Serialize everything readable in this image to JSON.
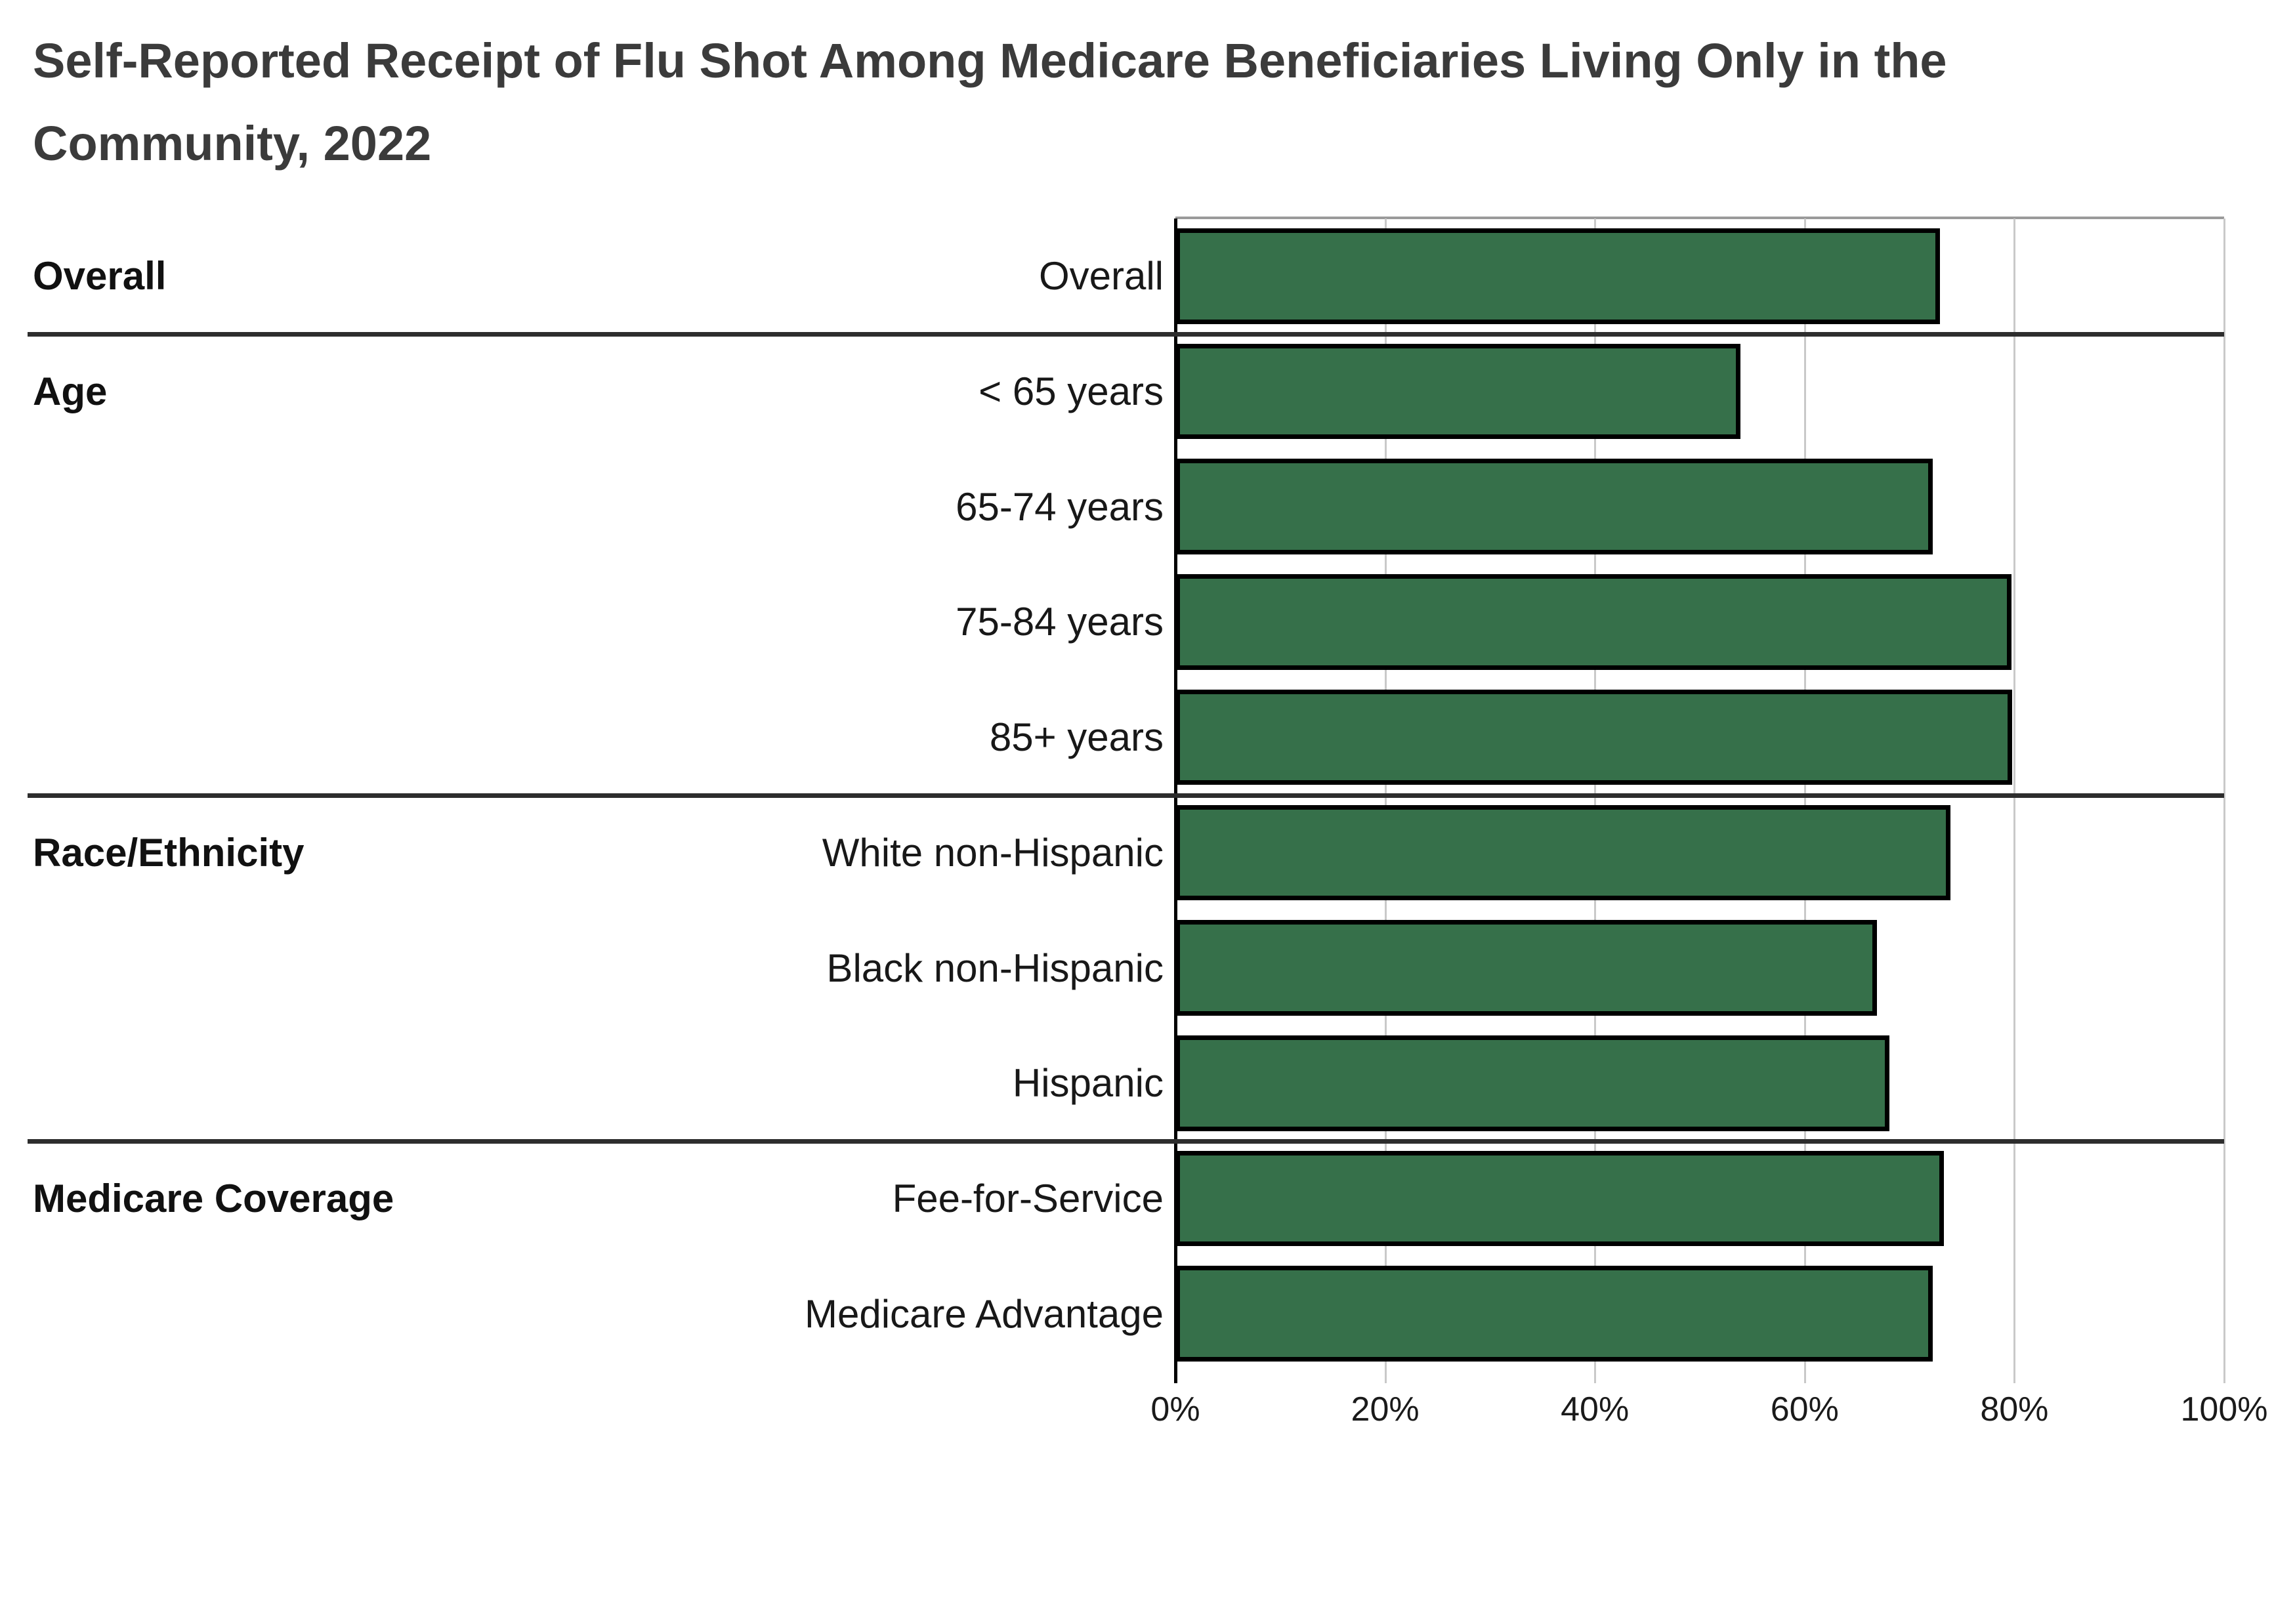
{
  "title": "Self-Reported Receipt of Flu Shot Among Medicare Beneficiaries Living Only in the Community, 2022",
  "colors": {
    "bar_fill": "#36704A",
    "bar_border": "#000000",
    "gridline": "#c9c9c9",
    "axis": "#000000",
    "divider": "#2d2d2d",
    "title_text": "#3b3b3b",
    "label_text": "#181818",
    "background": "#ffffff"
  },
  "chart_data": {
    "type": "bar",
    "orientation": "horizontal",
    "title": "Self-Reported Receipt of Flu Shot Among Medicare Beneficiaries Living Only in the Community, 2022",
    "xlabel": "",
    "ylabel": "",
    "unit": "percent",
    "xlim": [
      0,
      100
    ],
    "x_ticks": [
      {
        "value": 0,
        "label": "0%"
      },
      {
        "value": 20,
        "label": "20%"
      },
      {
        "value": 40,
        "label": "40%"
      },
      {
        "value": 60,
        "label": "60%"
      },
      {
        "value": 80,
        "label": "80%"
      },
      {
        "value": 100,
        "label": "100%"
      }
    ],
    "grid": "vertical-gridlines-on",
    "legend": "none",
    "groups": [
      {
        "label": "Overall",
        "rows": [
          {
            "label": "Overall",
            "value": 72.9
          }
        ]
      },
      {
        "label": "Age",
        "rows": [
          {
            "label": "< 65 years",
            "value": 53.9
          },
          {
            "label": "65-74 years",
            "value": 72.2
          },
          {
            "label": "75-84 years",
            "value": 79.7
          },
          {
            "label": "85+ years",
            "value": 79.8
          }
        ]
      },
      {
        "label": "Race/Ethnicity",
        "rows": [
          {
            "label": "White non-Hispanic",
            "value": 73.9
          },
          {
            "label": "Black non-Hispanic",
            "value": 66.9
          },
          {
            "label": "Hispanic",
            "value": 68.1
          }
        ]
      },
      {
        "label": "Medicare Coverage",
        "rows": [
          {
            "label": "Fee-for-Service",
            "value": 73.3
          },
          {
            "label": "Medicare Advantage",
            "value": 72.2
          }
        ]
      }
    ]
  }
}
